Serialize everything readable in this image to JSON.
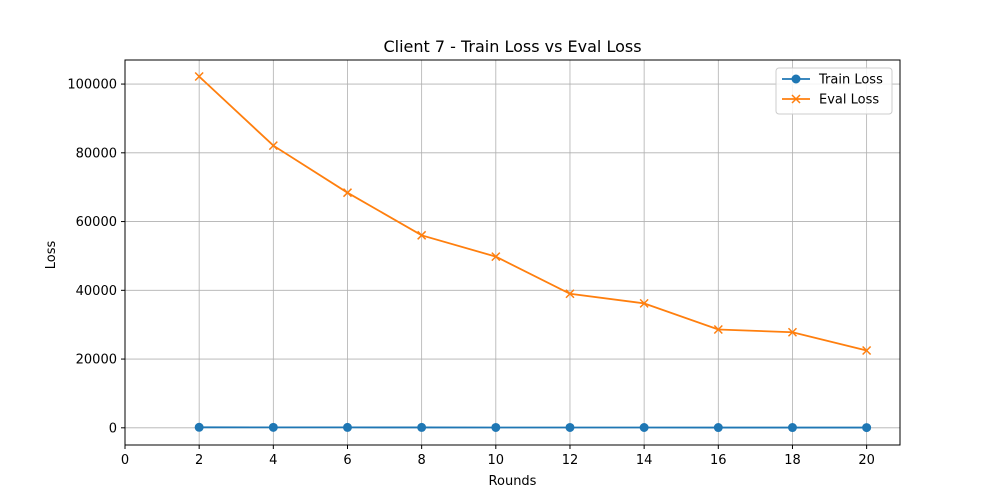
{
  "chart_data": {
    "type": "line",
    "title": "Client 7 - Train Loss vs Eval Loss",
    "xlabel": "Rounds",
    "ylabel": "Loss",
    "x": [
      2,
      4,
      6,
      8,
      10,
      12,
      14,
      16,
      18,
      20
    ],
    "xlim": [
      0,
      20.9
    ],
    "ylim": [
      -5000,
      107000
    ],
    "xticks": [
      0,
      2,
      4,
      6,
      8,
      10,
      12,
      14,
      16,
      18,
      20
    ],
    "yticks": [
      0,
      20000,
      40000,
      60000,
      80000,
      100000
    ],
    "grid": true,
    "legend_position": "top-right",
    "series": [
      {
        "name": "Train Loss",
        "marker": "circle",
        "color": "#1f77b4",
        "values": [
          150,
          130,
          120,
          110,
          100,
          100,
          90,
          80,
          80,
          70
        ]
      },
      {
        "name": "Eval Loss",
        "marker": "x",
        "color": "#ff7f0e",
        "values": [
          102200,
          82100,
          68400,
          56000,
          49800,
          39000,
          36200,
          28600,
          27800,
          22500
        ]
      }
    ]
  }
}
